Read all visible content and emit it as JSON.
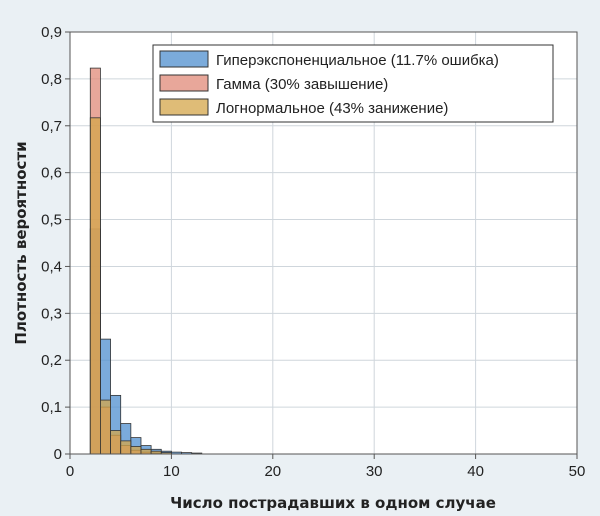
{
  "chart_data": {
    "type": "bar",
    "bar_style": "overlaid-histogram",
    "xlabel": "Число пострадавших в одном случае",
    "ylabel": "Плотность вероятности",
    "xlim": [
      0,
      50
    ],
    "ylim": [
      0,
      0.9
    ],
    "x_ticks": [
      0,
      10,
      20,
      30,
      40,
      50
    ],
    "x_tick_labels": [
      "0",
      "10",
      "20",
      "30",
      "40",
      "50"
    ],
    "y_ticks": [
      0,
      0.1,
      0.2,
      0.3,
      0.4,
      0.5,
      0.6,
      0.7,
      0.8,
      0.9
    ],
    "y_tick_labels": [
      "0",
      "0,1",
      "0,2",
      "0,3",
      "0,4",
      "0,5",
      "0,6",
      "0,7",
      "0,8",
      "0,9"
    ],
    "grid": true,
    "legend_position": "top-right",
    "bin_width": 1,
    "series": [
      {
        "name": "Гиперэкспоненциальное (11.7% ошибка)",
        "color": "#4f8fcf",
        "bins": [
          2,
          3,
          4,
          5,
          6,
          7,
          8,
          9,
          10,
          11,
          12
        ],
        "values": [
          0.48,
          0.245,
          0.125,
          0.065,
          0.035,
          0.018,
          0.01,
          0.006,
          0.004,
          0.003,
          0.002
        ]
      },
      {
        "name": "Гамма (30% завышение)",
        "color": "#e08a78",
        "bins": [
          2,
          3,
          4,
          5,
          6,
          7,
          8
        ],
        "values": [
          0.823,
          0.1,
          0.04,
          0.018,
          0.008,
          0.004,
          0.002
        ]
      },
      {
        "name": "Логнормальное (43% занижение)",
        "color": "#d4a64a",
        "bins": [
          2,
          3,
          4,
          5,
          6,
          7,
          8,
          9
        ],
        "values": [
          0.717,
          0.115,
          0.05,
          0.028,
          0.016,
          0.01,
          0.006,
          0.003
        ]
      }
    ]
  }
}
